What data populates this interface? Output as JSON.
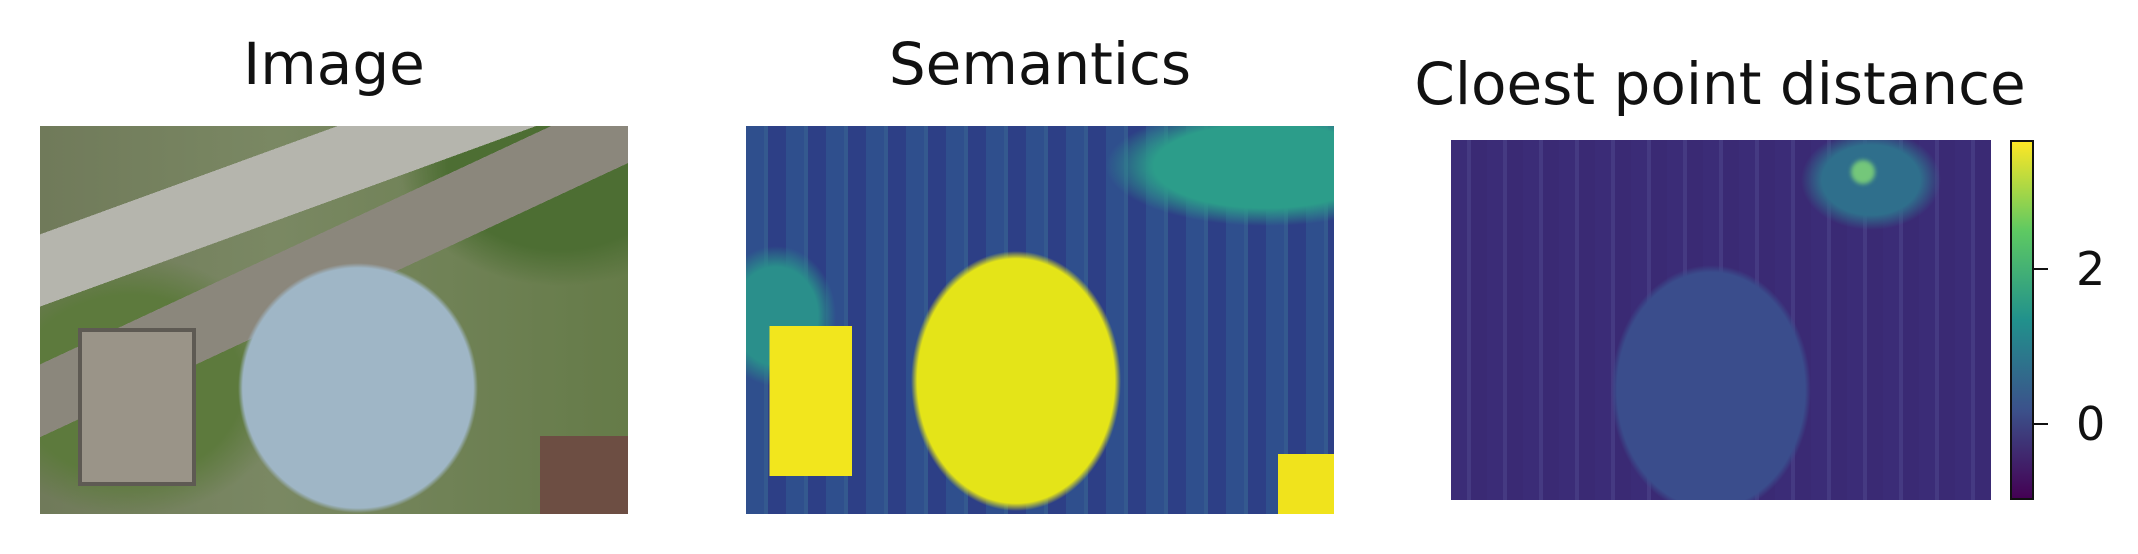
{
  "panels": [
    {
      "title": "Image",
      "content": "aerial-rgb-photo"
    },
    {
      "title": "Semantics",
      "content": "semantic-segmentation-map"
    },
    {
      "title": "Cloest point distance",
      "content": "distance-heatmap"
    }
  ],
  "colorbar": {
    "colormap": "viridis",
    "ticks": [
      {
        "label": "2",
        "value": 2
      },
      {
        "label": "0",
        "value": 0
      }
    ],
    "range": [
      -1,
      3.5
    ],
    "colors": [
      "#440154",
      "#3b528b",
      "#21918c",
      "#5ec962",
      "#fde725"
    ]
  }
}
